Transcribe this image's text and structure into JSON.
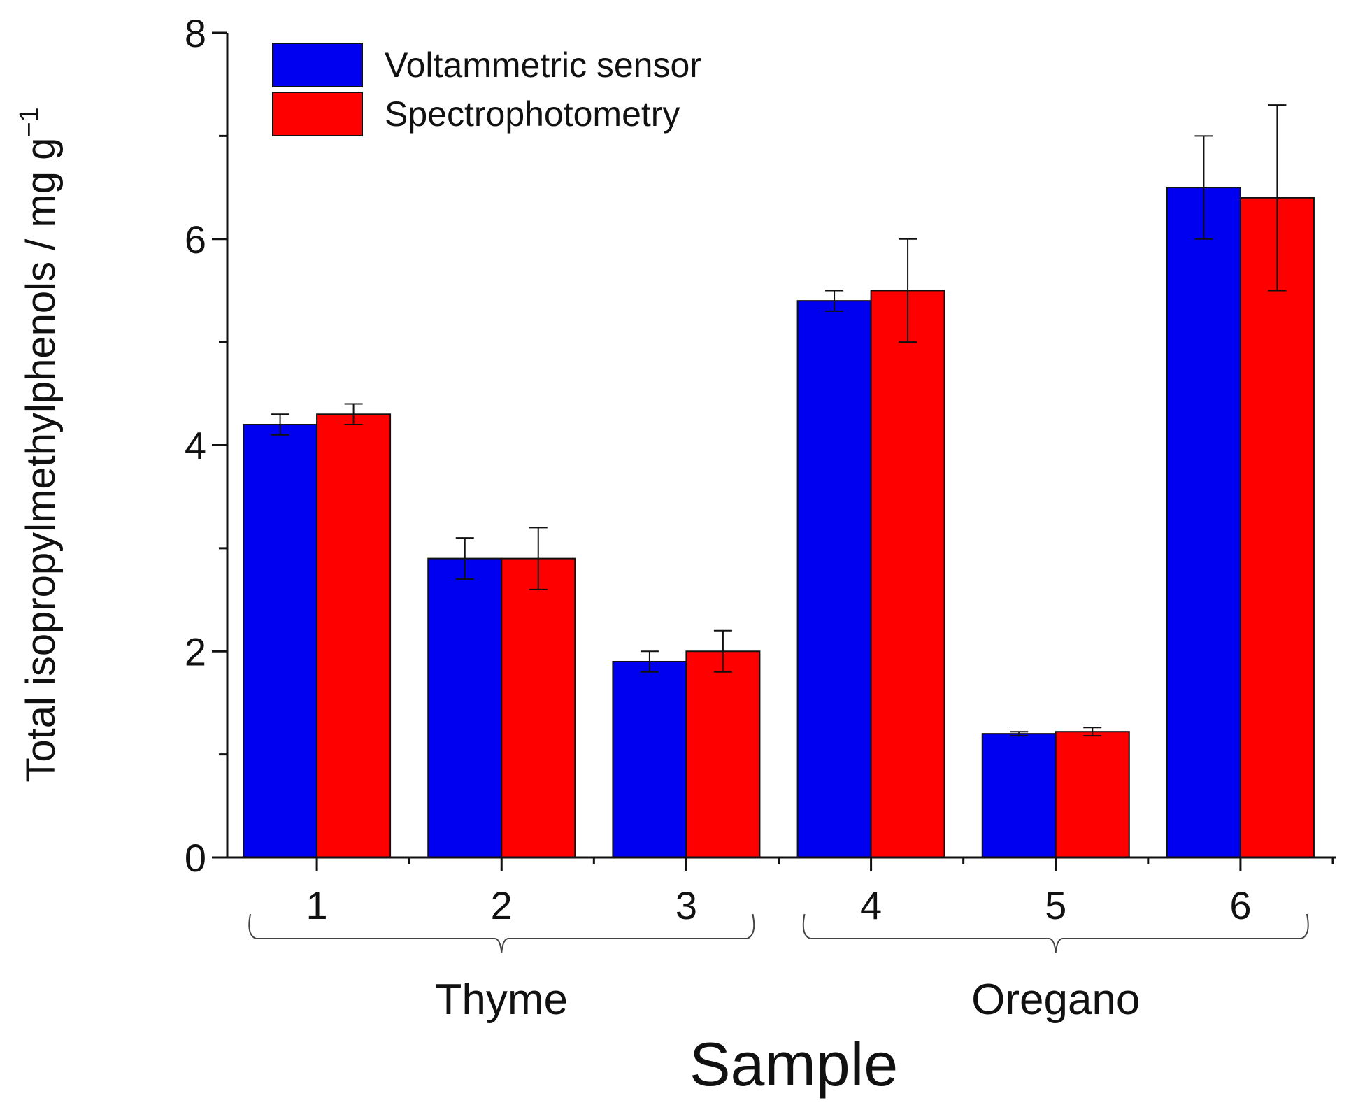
{
  "chart_data": {
    "type": "bar",
    "title": "",
    "xlabel": "Sample",
    "ylabel": "Total isopropylmethylphenols / mg g",
    "ylabel_superscript": "−1",
    "categories": [
      "1",
      "2",
      "3",
      "4",
      "5",
      "6"
    ],
    "groups": [
      {
        "label": "Thyme",
        "categories": [
          "1",
          "2",
          "3"
        ]
      },
      {
        "label": "Oregano",
        "categories": [
          "4",
          "5",
          "6"
        ]
      }
    ],
    "series": [
      {
        "name": "Voltammetric sensor",
        "color": "#0000f0",
        "values": [
          4.2,
          2.9,
          1.9,
          5.4,
          1.2,
          6.5
        ],
        "errors": [
          0.1,
          0.2,
          0.1,
          0.1,
          0.02,
          0.5
        ]
      },
      {
        "name": "Spectrophotometry",
        "color": "#ff0000",
        "values": [
          4.3,
          2.9,
          2.0,
          5.5,
          1.22,
          6.4
        ],
        "errors": [
          0.1,
          0.3,
          0.2,
          0.5,
          0.04,
          0.9
        ]
      }
    ],
    "ylim": [
      0,
      8
    ],
    "yticks": [
      0,
      2,
      4,
      6,
      8
    ],
    "grid": false,
    "legend_position": "top-left"
  }
}
